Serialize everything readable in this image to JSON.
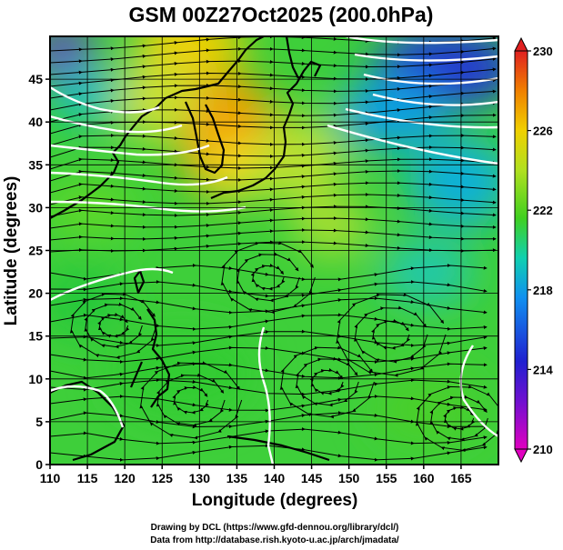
{
  "title": "GSM 00Z27Oct2025 (200.0hPa)",
  "x_axis": {
    "label": "Longitude (degrees)",
    "range": [
      110,
      170
    ],
    "ticks": [
      "110",
      "115",
      "120",
      "125",
      "130",
      "135",
      "140",
      "145",
      "150",
      "155",
      "160",
      "165"
    ]
  },
  "y_axis": {
    "label": "Latitude  (degrees)",
    "range": [
      0,
      50
    ],
    "ticks": [
      "0",
      "5",
      "10",
      "15",
      "20",
      "25",
      "30",
      "35",
      "40",
      "45"
    ]
  },
  "colorbar": {
    "range": [
      210,
      230
    ],
    "ticks": [
      "210",
      "214",
      "218",
      "222",
      "226",
      "230"
    ],
    "colors": [
      "#e000c0",
      "#2020d0",
      "#1090f0",
      "#10d0b0",
      "#40d020",
      "#b0e020",
      "#f0d000",
      "#f08000",
      "#e02020"
    ]
  },
  "map": {
    "land_outline_color": "#000000",
    "contour_color": "#ffffff",
    "streamline_color": "#000000",
    "grid_spacing_degrees": 5
  },
  "credits": {
    "drawing": "Drawing by DCL (https://www.gfd-dennou.org/library/dcl/)",
    "data": "Data from http://database.rish.kyoto-u.ac.jp/arch/jmadata/"
  }
}
